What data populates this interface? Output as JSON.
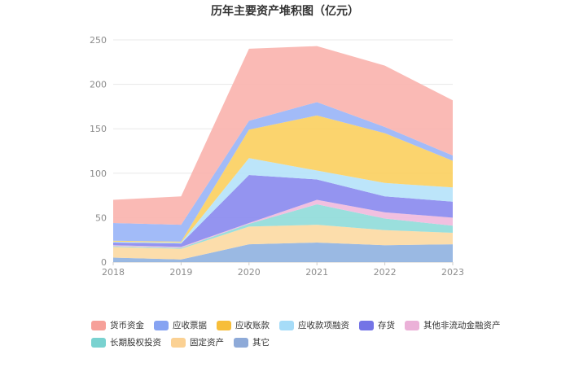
{
  "title": "历年主要资产堆积图（亿元）",
  "chart_data": {
    "type": "area",
    "stacked": true,
    "x": [
      "2018",
      "2019",
      "2020",
      "2021",
      "2022",
      "2023"
    ],
    "ylim": [
      0,
      250
    ],
    "yticks": [
      0,
      50,
      100,
      150,
      200,
      250
    ],
    "grid": true,
    "legend_position": "bottom",
    "series": [
      {
        "name": "其它",
        "color": "#8fb1e0",
        "values": [
          5,
          3,
          20,
          22,
          19,
          20
        ]
      },
      {
        "name": "固定资产",
        "color": "#fcd9a2",
        "values": [
          12,
          12,
          20,
          20,
          17,
          13
        ]
      },
      {
        "name": "长期股权投资",
        "color": "#8fdbd9",
        "values": [
          1,
          1,
          3,
          23,
          13,
          8
        ]
      },
      {
        "name": "其他非流动金融资产",
        "color": "#efb9dd",
        "values": [
          1,
          1,
          1,
          5,
          7,
          9
        ]
      },
      {
        "name": "存货",
        "color": "#8888ee",
        "values": [
          3,
          4,
          54,
          23,
          18,
          18
        ]
      },
      {
        "name": "应收款项融资",
        "color": "#b5e2fa",
        "values": [
          1,
          1,
          19,
          10,
          15,
          16
        ]
      },
      {
        "name": "应收账款",
        "color": "#fbcf5e",
        "values": [
          1,
          1,
          32,
          62,
          56,
          30
        ]
      },
      {
        "name": "应收票据",
        "color": "#98b4f7",
        "values": [
          20,
          19,
          10,
          15,
          7,
          6
        ]
      },
      {
        "name": "货币资金",
        "color": "#f9b3ad",
        "values": [
          26,
          32,
          81,
          63,
          69,
          62
        ]
      }
    ]
  },
  "legend_order": [
    {
      "name": "货币资金",
      "swatch": "#f6a099"
    },
    {
      "name": "应收票据",
      "swatch": "#86a3f2"
    },
    {
      "name": "应收账款",
      "swatch": "#f7be3a"
    },
    {
      "name": "应收款项融资",
      "swatch": "#a6dcf8"
    },
    {
      "name": "存货",
      "swatch": "#7474e6"
    },
    {
      "name": "其他非流动金融资产",
      "swatch": "#ebb1d8"
    },
    {
      "name": "长期股权投资",
      "swatch": "#79d2d0"
    },
    {
      "name": "固定资产",
      "swatch": "#fbd193"
    },
    {
      "name": "其它",
      "swatch": "#8eaad8"
    }
  ]
}
